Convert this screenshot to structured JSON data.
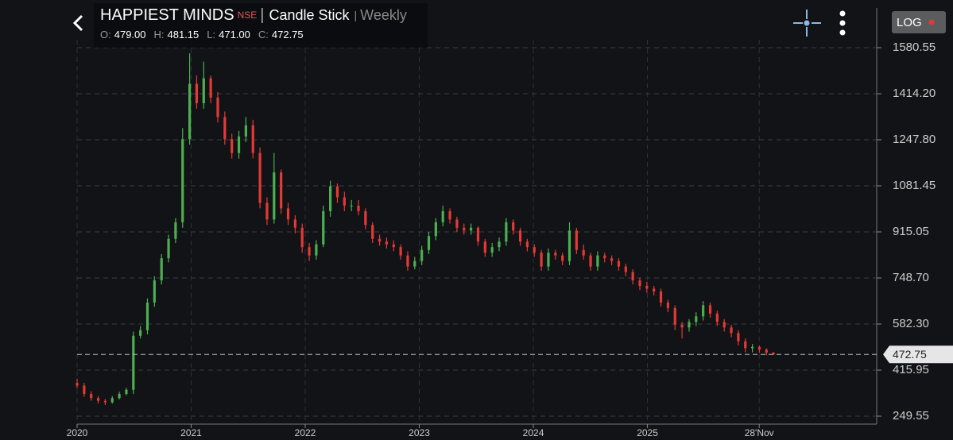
{
  "chart_data": {
    "type": "candlestick",
    "title": "HAPPIEST MINDS",
    "exchange": "NSE",
    "chart_style": "Candle Stick",
    "interval": "Weekly",
    "ohlc_header": [
      {
        "label": "O:",
        "value": "479.00"
      },
      {
        "label": "H:",
        "value": "481.15"
      },
      {
        "label": "L:",
        "value": "471.00"
      },
      {
        "label": "C:",
        "value": "472.75"
      }
    ],
    "scale_button": "LOG",
    "up_color": "#4caf50",
    "down_color": "#e53935",
    "open": [
      370,
      360,
      330,
      315,
      305,
      300,
      315,
      330,
      345,
      540,
      560,
      660,
      740,
      820,
      890,
      950,
      1250,
      1450,
      1380,
      1470,
      1400,
      1330,
      1250,
      1200,
      1260,
      1300,
      1200,
      1020,
      960,
      1130,
      1000,
      960,
      930,
      860,
      830,
      870,
      990,
      1080,
      1040,
      1010,
      1010,
      990,
      940,
      890,
      880,
      870,
      860,
      830,
      790,
      810,
      850,
      900,
      950,
      990,
      960,
      930,
      920,
      930,
      880,
      840,
      860,
      880,
      950,
      920,
      880,
      860,
      840,
      790,
      840,
      830,
      810,
      920,
      850,
      830,
      790,
      830,
      820,
      810,
      790,
      770,
      740,
      720,
      710,
      700,
      660,
      640,
      580,
      570,
      590,
      610,
      650,
      620,
      590,
      570,
      550,
      520,
      495,
      500,
      490,
      479
    ],
    "high": [
      385,
      370,
      340,
      322,
      312,
      322,
      338,
      352,
      555,
      575,
      675,
      755,
      835,
      905,
      965,
      1290,
      1560,
      1480,
      1530,
      1480,
      1420,
      1350,
      1270,
      1280,
      1330,
      1320,
      1220,
      1040,
      1200,
      1140,
      1020,
      975,
      945,
      875,
      885,
      1010,
      1100,
      1090,
      1060,
      1030,
      1030,
      1000,
      950,
      905,
      895,
      885,
      870,
      845,
      825,
      865,
      915,
      965,
      1010,
      1000,
      970,
      945,
      945,
      935,
      890,
      875,
      895,
      965,
      960,
      930,
      890,
      870,
      850,
      855,
      850,
      840,
      950,
      930,
      870,
      840,
      845,
      840,
      830,
      820,
      800,
      780,
      750,
      735,
      720,
      710,
      670,
      650,
      590,
      600,
      625,
      665,
      660,
      630,
      600,
      580,
      560,
      530,
      510,
      505,
      495,
      481.15
    ],
    "low": [
      350,
      320,
      305,
      295,
      290,
      295,
      310,
      325,
      330,
      530,
      545,
      645,
      725,
      805,
      875,
      930,
      1230,
      1360,
      1360,
      1380,
      1310,
      1230,
      1180,
      1180,
      1240,
      1180,
      1000,
      940,
      945,
      980,
      940,
      910,
      840,
      810,
      815,
      860,
      970,
      1020,
      990,
      990,
      975,
      925,
      875,
      865,
      855,
      845,
      815,
      775,
      780,
      795,
      835,
      885,
      935,
      945,
      915,
      905,
      905,
      865,
      825,
      825,
      845,
      865,
      905,
      865,
      845,
      825,
      775,
      775,
      815,
      795,
      795,
      835,
      815,
      775,
      775,
      805,
      795,
      775,
      755,
      725,
      705,
      695,
      685,
      645,
      625,
      560,
      530,
      555,
      575,
      595,
      605,
      575,
      555,
      535,
      505,
      480,
      480,
      478,
      470,
      471
    ],
    "close": [
      360,
      330,
      315,
      305,
      300,
      315,
      330,
      345,
      540,
      560,
      660,
      740,
      820,
      890,
      950,
      1250,
      1450,
      1380,
      1470,
      1400,
      1330,
      1250,
      1200,
      1260,
      1300,
      1200,
      1020,
      960,
      1130,
      1000,
      960,
      930,
      860,
      830,
      870,
      990,
      1080,
      1040,
      1010,
      1010,
      990,
      940,
      890,
      880,
      870,
      860,
      830,
      790,
      810,
      850,
      900,
      950,
      990,
      960,
      930,
      920,
      930,
      880,
      840,
      860,
      880,
      950,
      920,
      880,
      860,
      840,
      790,
      840,
      830,
      810,
      920,
      850,
      830,
      790,
      830,
      820,
      810,
      790,
      770,
      740,
      720,
      710,
      700,
      660,
      640,
      580,
      570,
      590,
      610,
      650,
      620,
      590,
      570,
      550,
      520,
      495,
      500,
      490,
      479,
      472.75
    ],
    "last_price": 472.75,
    "ylim": [
      220.9,
      1609.2
    ],
    "yticks": [
      249.55,
      415.95,
      {
        "value": 582.3,
        "label": "582.30"
      },
      {
        "value": 748.7,
        "label": "748.70"
      },
      915.05,
      1081.45,
      {
        "value": 1247.8,
        "label": "1247.80"
      },
      {
        "value": 1414.2,
        "label": "1414.20"
      },
      1580.55
    ],
    "xlim": [
      2020,
      2027.01
    ],
    "xticks": [
      2020,
      2021,
      2022,
      2023,
      2024,
      2025,
      {
        "value": 2025.98,
        "label": "28'Nov"
      }
    ],
    "grid": true
  }
}
